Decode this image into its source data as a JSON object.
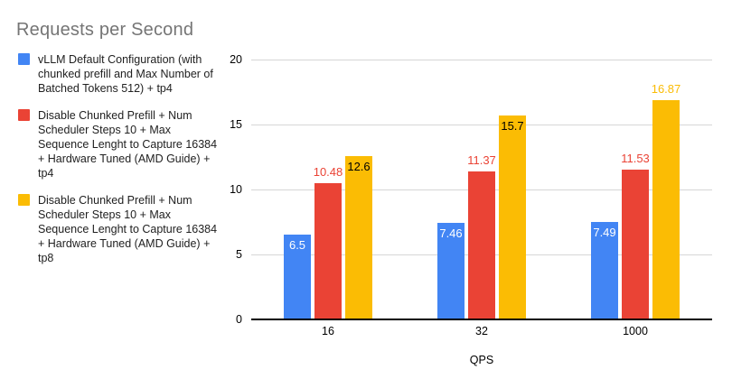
{
  "title": "Requests per Second",
  "chart_data": {
    "type": "bar",
    "title": "Requests per Second",
    "xlabel": "QPS",
    "ylabel": "",
    "ylim": [
      0,
      20
    ],
    "yticks": [
      0,
      5,
      10,
      15,
      20
    ],
    "grid": true,
    "legend_position": "left",
    "categories": [
      "16",
      "32",
      "1000"
    ],
    "series": [
      {
        "name": "vLLM Default Configuration (with chunked prefill and Max Number of Batched Tokens 512) + tp4",
        "color": "#4285F4",
        "values": [
          6.5,
          7.46,
          7.49
        ],
        "value_labels": [
          {
            "text": "6.5",
            "position": "inside",
            "color": "#ffffff"
          },
          {
            "text": "7.46",
            "position": "inside",
            "color": "#ffffff"
          },
          {
            "text": "7.49",
            "position": "inside",
            "color": "#ffffff"
          }
        ]
      },
      {
        "name": "Disable Chunked Prefill + Num Scheduler Steps 10 + Max Sequence Lenght to Capture 16384 + Hardware Tuned (AMD Guide) + tp4",
        "color": "#EA4335",
        "values": [
          10.48,
          11.37,
          11.53
        ],
        "value_labels": [
          {
            "text": "10.48",
            "position": "above",
            "color": "#EA4335"
          },
          {
            "text": "11.37",
            "position": "above",
            "color": "#EA4335"
          },
          {
            "text": "11.53",
            "position": "above",
            "color": "#EA4335"
          }
        ]
      },
      {
        "name": "Disable Chunked Prefill + Num Scheduler Steps 10 + Max Sequence Lenght to Capture 16384 + Hardware Tuned (AMD Guide) + tp8",
        "color": "#FBBC04",
        "values": [
          12.6,
          15.7,
          16.87
        ],
        "value_labels": [
          {
            "text": "12.6",
            "position": "inside",
            "color": "#000000"
          },
          {
            "text": "15.7",
            "position": "inside",
            "color": "#000000"
          },
          {
            "text": "16.87",
            "position": "above",
            "color": "#FBBC04"
          }
        ]
      }
    ]
  },
  "colors": {
    "title_text": "#757575",
    "axis_text": "#000000",
    "gridline": "#d6d6d6",
    "baseline": "#000000",
    "background": "#ffffff"
  }
}
